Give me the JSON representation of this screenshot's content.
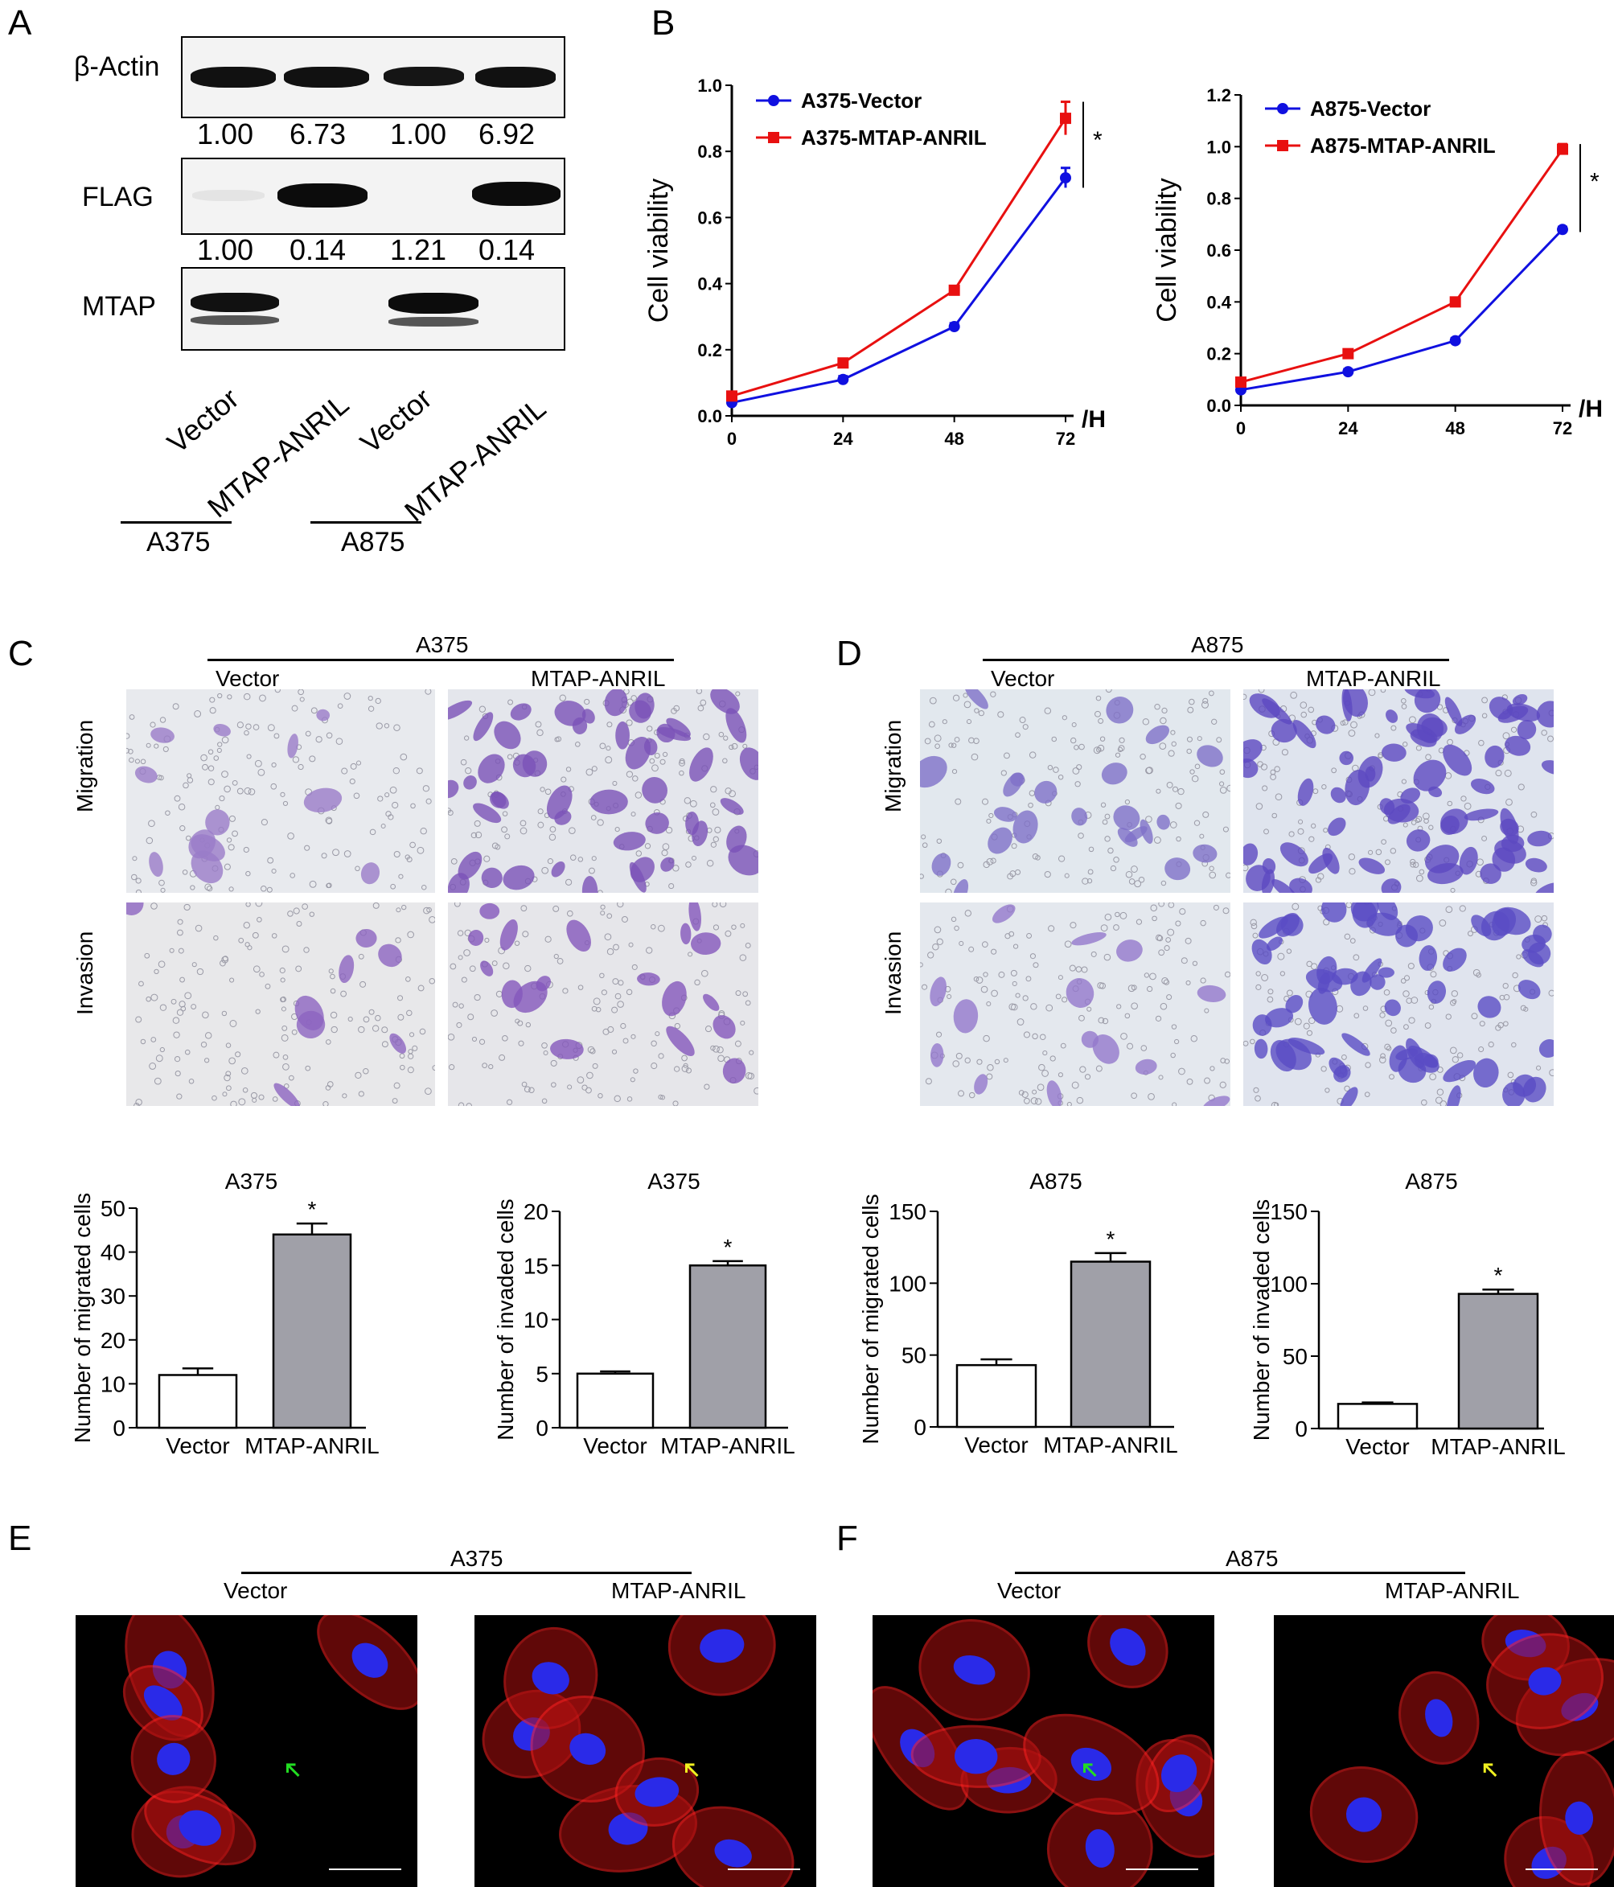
{
  "panel_letters": {
    "a": "A",
    "b": "B",
    "c": "C",
    "d": "D",
    "e": "E",
    "f": "F"
  },
  "panelA": {
    "rows": [
      {
        "label": "β-Actin",
        "values": [
          "1.00",
          "6.73",
          "1.00",
          "6.92"
        ]
      },
      {
        "label": "FLAG",
        "values": [
          "1.00",
          "0.14",
          "1.21",
          "0.14"
        ]
      },
      {
        "label": "MTAP"
      }
    ],
    "lanes": [
      "Vector",
      "MTAP-ANRIL",
      "Vector",
      "MTAP-ANRIL"
    ],
    "groups": [
      "A375",
      "A875"
    ]
  },
  "panelC": {
    "cell_line": "A375",
    "conditions": [
      "Vector",
      "MTAP-ANRIL"
    ],
    "rows": [
      "Migration",
      "Invasion"
    ]
  },
  "panelD": {
    "cell_line": "A875",
    "conditions": [
      "Vector",
      "MTAP-ANRIL"
    ],
    "rows": [
      "Migration",
      "Invasion"
    ]
  },
  "panelE": {
    "cell_line": "A375",
    "conditions": [
      "Vector",
      "MTAP-ANRIL"
    ]
  },
  "panelF": {
    "cell_line": "A875",
    "conditions": [
      "Vector",
      "MTAP-ANRIL"
    ]
  },
  "colors": {
    "vector": "#1010e0",
    "anril": "#e81010",
    "bar_anril": "#a0a0a8"
  },
  "chart_data": [
    {
      "type": "line",
      "ylabel": "Cell viability",
      "xunit": "/H",
      "x": [
        0,
        24,
        48,
        72
      ],
      "xticks": [
        "0",
        "24",
        "48",
        "72"
      ],
      "ylim": [
        0,
        1.0
      ],
      "yticks": [
        "0.0",
        "0.2",
        "0.4",
        "0.6",
        "0.8",
        "1.0"
      ],
      "series": [
        {
          "name": "A375-Vector",
          "values": [
            0.04,
            0.11,
            0.27,
            0.72
          ],
          "err": [
            0.01,
            0.01,
            0.01,
            0.03
          ]
        },
        {
          "name": "A375-MTAP-ANRIL",
          "values": [
            0.06,
            0.16,
            0.38,
            0.9
          ],
          "err": [
            0.01,
            0.01,
            0.01,
            0.05
          ]
        }
      ],
      "annotation": "*"
    },
    {
      "type": "line",
      "ylabel": "Cell viability",
      "xunit": "/H",
      "x": [
        0,
        24,
        48,
        72
      ],
      "xticks": [
        "0",
        "24",
        "48",
        "72"
      ],
      "ylim": [
        0,
        1.2
      ],
      "yticks": [
        "0.0",
        "0.2",
        "0.4",
        "0.6",
        "0.8",
        "1.0",
        "1.2"
      ],
      "series": [
        {
          "name": "A875-Vector",
          "values": [
            0.06,
            0.13,
            0.25,
            0.68
          ],
          "err": [
            0.01,
            0.01,
            0.01,
            0.01
          ]
        },
        {
          "name": "A875-MTAP-ANRIL",
          "values": [
            0.09,
            0.2,
            0.4,
            0.99
          ],
          "err": [
            0.01,
            0.01,
            0.01,
            0.02
          ]
        }
      ],
      "annotation": "*"
    },
    {
      "type": "bar",
      "title": "A375",
      "ylabel": "Number of migrated cells",
      "categories": [
        "Vector",
        "MTAP-ANRIL"
      ],
      "values": [
        12,
        44
      ],
      "err": [
        1.5,
        2.5
      ],
      "ylim": [
        0,
        50
      ],
      "yticks": [
        "0",
        "10",
        "20",
        "30",
        "40",
        "50"
      ],
      "annotation": "*"
    },
    {
      "type": "bar",
      "title": "A375",
      "ylabel": "Number of invaded cells",
      "categories": [
        "Vector",
        "MTAP-ANRIL"
      ],
      "values": [
        5,
        15
      ],
      "err": [
        0.2,
        0.4
      ],
      "ylim": [
        0,
        20
      ],
      "yticks": [
        "0",
        "5",
        "10",
        "15",
        "20"
      ],
      "annotation": "*"
    },
    {
      "type": "bar",
      "title": "A875",
      "ylabel": "Number of migrated cells",
      "categories": [
        "Vector",
        "MTAP-ANRIL"
      ],
      "values": [
        43,
        115
      ],
      "err": [
        4,
        6
      ],
      "ylim": [
        0,
        150
      ],
      "yticks": [
        "0",
        "50",
        "100",
        "150"
      ],
      "annotation": "*"
    },
    {
      "type": "bar",
      "title": "A875",
      "ylabel": "Number of invaded cells",
      "categories": [
        "Vector",
        "MTAP-ANRIL"
      ],
      "values": [
        17,
        93
      ],
      "err": [
        1,
        3
      ],
      "ylim": [
        0,
        150
      ],
      "yticks": [
        "0",
        "50",
        "100",
        "150"
      ],
      "annotation": "*"
    }
  ]
}
